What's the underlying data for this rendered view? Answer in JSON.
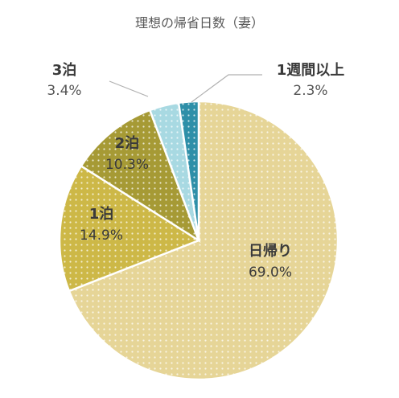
{
  "chart_data": {
    "type": "pie",
    "title": "理想の帰省日数（妻）",
    "slices": [
      {
        "label": "日帰り",
        "value": 69.0,
        "display": "69.0%",
        "color": "#e6d597"
      },
      {
        "label": "1泊",
        "value": 14.9,
        "display": "14.9%",
        "color": "#cdb847"
      },
      {
        "label": "2泊",
        "value": 10.3,
        "display": "10.3%",
        "color": "#a69a35"
      },
      {
        "label": "3泊",
        "value": 3.4,
        "display": "3.4%",
        "color": "#a8d9e2"
      },
      {
        "label": "1週間以上",
        "value": 2.3,
        "display": "2.3%",
        "color": "#2e8fa8"
      }
    ],
    "start_angle_deg": 0,
    "direction": "clockwise",
    "dotted_pattern": true
  }
}
